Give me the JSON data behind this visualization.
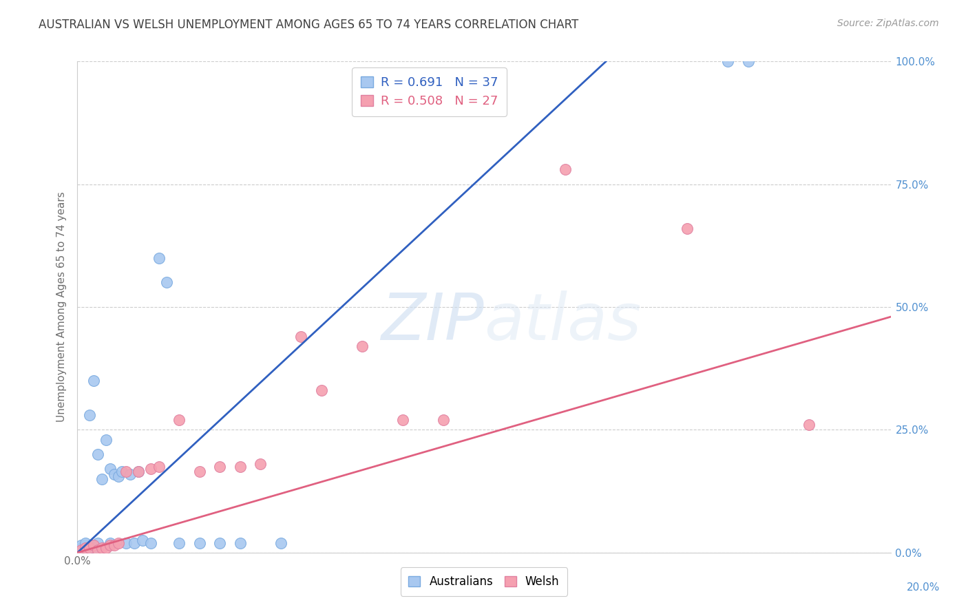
{
  "title": "AUSTRALIAN VS WELSH UNEMPLOYMENT AMONG AGES 65 TO 74 YEARS CORRELATION CHART",
  "source": "Source: ZipAtlas.com",
  "ylabel": "Unemployment Among Ages 65 to 74 years",
  "background_color": "#ffffff",
  "aus_color": "#a8c8f0",
  "wel_color": "#f5a0b0",
  "aus_line_color": "#3060c0",
  "wel_line_color": "#e06080",
  "aus_r": "0.691",
  "aus_n": "37",
  "wel_r": "0.508",
  "wel_n": "27",
  "aus_points_x": [
    0.001,
    0.001,
    0.001,
    0.002,
    0.002,
    0.002,
    0.002,
    0.003,
    0.003,
    0.003,
    0.004,
    0.004,
    0.004,
    0.005,
    0.005,
    0.006,
    0.007,
    0.008,
    0.008,
    0.009,
    0.01,
    0.011,
    0.012,
    0.013,
    0.014,
    0.015,
    0.016,
    0.018,
    0.02,
    0.022,
    0.025,
    0.03,
    0.035,
    0.04,
    0.05,
    0.16,
    0.165
  ],
  "aus_points_y": [
    0.005,
    0.01,
    0.015,
    0.005,
    0.01,
    0.015,
    0.02,
    0.005,
    0.01,
    0.28,
    0.01,
    0.015,
    0.35,
    0.2,
    0.02,
    0.15,
    0.23,
    0.17,
    0.02,
    0.16,
    0.155,
    0.165,
    0.02,
    0.16,
    0.02,
    0.165,
    0.025,
    0.02,
    0.6,
    0.55,
    0.02,
    0.02,
    0.02,
    0.02,
    0.02,
    1.0,
    1.0
  ],
  "wel_points_x": [
    0.001,
    0.002,
    0.003,
    0.004,
    0.005,
    0.006,
    0.007,
    0.008,
    0.009,
    0.01,
    0.012,
    0.015,
    0.018,
    0.02,
    0.025,
    0.03,
    0.035,
    0.04,
    0.045,
    0.055,
    0.06,
    0.07,
    0.08,
    0.09,
    0.12,
    0.15,
    0.18
  ],
  "wel_points_y": [
    0.005,
    0.01,
    0.01,
    0.015,
    0.005,
    0.01,
    0.01,
    0.015,
    0.015,
    0.02,
    0.165,
    0.165,
    0.17,
    0.175,
    0.27,
    0.165,
    0.175,
    0.175,
    0.18,
    0.44,
    0.33,
    0.42,
    0.27,
    0.27,
    0.78,
    0.66,
    0.26
  ],
  "xlim": [
    0.0,
    0.2
  ],
  "ylim": [
    0.0,
    1.0
  ],
  "yticks": [
    0.0,
    0.25,
    0.5,
    0.75,
    1.0
  ],
  "ytick_labels": [
    "0.0%",
    "25.0%",
    "50.0%",
    "75.0%",
    "100.0%"
  ],
  "xtick_positions": [
    0.0,
    0.05,
    0.1,
    0.15,
    0.2
  ],
  "xtick_labels": [
    "0.0%",
    "",
    "",
    "",
    ""
  ],
  "x_right_label": "20.0%"
}
